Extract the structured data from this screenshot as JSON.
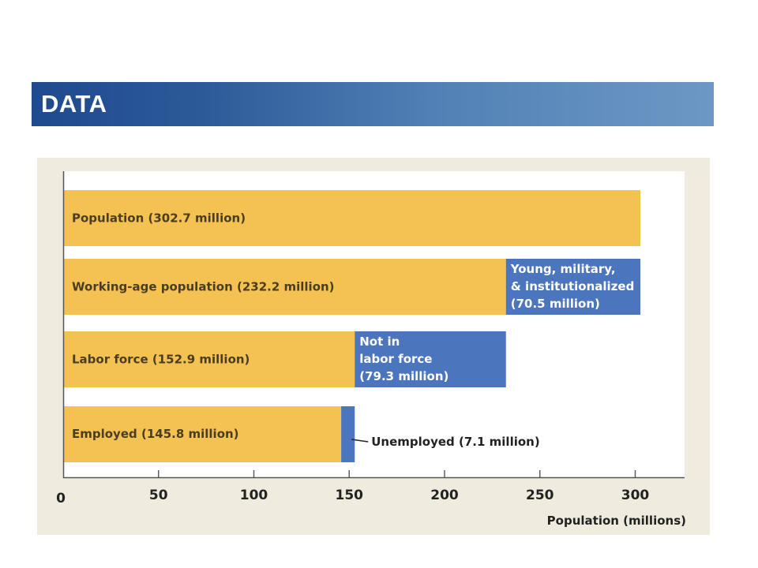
{
  "slide": {
    "title": "DATA"
  },
  "colors": {
    "primary_bar": "#f4c252",
    "secondary_bar": "#4b76bd",
    "plot_background": "#ffffff",
    "panel_background": "#efebdf"
  },
  "chart_data": {
    "type": "bar",
    "orientation": "horizontal",
    "stacked": true,
    "categories": [
      "Population",
      "Working-age population",
      "Labor force",
      "Employed"
    ],
    "series": [
      {
        "values": [
          302.7,
          232.2,
          152.9,
          145.8
        ],
        "labels": [
          "Population (302.7 million)",
          "Working-age population (232.2 million)",
          "Labor force (152.9 million)",
          "Employed (145.8 million)"
        ]
      },
      {
        "values": [
          0,
          70.5,
          79.3,
          7.1
        ],
        "labels": [
          [],
          [
            "Young, military,",
            "& institutionalized",
            "(70.5 million)"
          ],
          [
            "Not in",
            "labor force",
            "(79.3 million)"
          ],
          [
            "Unemployed (7.1 million)"
          ]
        ]
      }
    ],
    "xlabel": "Population (millions)",
    "xticks": [
      0,
      50,
      100,
      150,
      200,
      250,
      300
    ],
    "xlim": [
      0,
      322
    ],
    "grid": false
  }
}
